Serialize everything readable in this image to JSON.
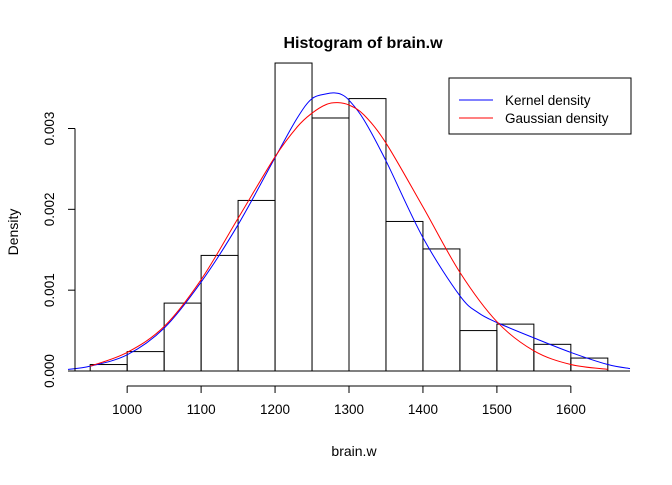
{
  "chart_data": {
    "type": "bar",
    "title": "Histogram of brain.w",
    "xlabel": "brain.w",
    "ylabel": "Density",
    "xlim": [
      920,
      1680
    ],
    "ylim": [
      0,
      0.0036
    ],
    "grid": false,
    "legend_position": "top-right",
    "x_ticks": [
      1000,
      1100,
      1200,
      1300,
      1400,
      1500,
      1600
    ],
    "y_ticks": [
      0.0,
      0.001,
      0.002,
      0.003
    ],
    "y_tick_labels": [
      "0.000",
      "0.001",
      "0.002",
      "0.003"
    ],
    "bins": [
      {
        "start": 950,
        "end": 1000,
        "density": 8e-05
      },
      {
        "start": 1000,
        "end": 1050,
        "density": 0.00024
      },
      {
        "start": 1050,
        "end": 1100,
        "density": 0.00084
      },
      {
        "start": 1100,
        "end": 1150,
        "density": 0.00143
      },
      {
        "start": 1150,
        "end": 1200,
        "density": 0.00211
      },
      {
        "start": 1200,
        "end": 1250,
        "density": 0.00381
      },
      {
        "start": 1250,
        "end": 1300,
        "density": 0.00313
      },
      {
        "start": 1300,
        "end": 1350,
        "density": 0.00337
      },
      {
        "start": 1350,
        "end": 1400,
        "density": 0.00185
      },
      {
        "start": 1400,
        "end": 1450,
        "density": 0.00151
      },
      {
        "start": 1450,
        "end": 1500,
        "density": 0.0005
      },
      {
        "start": 1500,
        "end": 1550,
        "density": 0.00058
      },
      {
        "start": 1550,
        "end": 1600,
        "density": 0.00033
      },
      {
        "start": 1600,
        "end": 1650,
        "density": 0.00016
      }
    ],
    "series": [
      {
        "name": "Kernel density",
        "color": "#0000ff",
        "x": [
          920,
          950,
          1000,
          1050,
          1100,
          1150,
          1200,
          1230,
          1250,
          1270,
          1280,
          1290,
          1300,
          1320,
          1350,
          1400,
          1450,
          1475,
          1500,
          1550,
          1600,
          1650,
          1680
        ],
        "y": [
          2e-05,
          6e-05,
          0.0002,
          0.00053,
          0.0011,
          0.00181,
          0.00264,
          0.00313,
          0.00337,
          0.00343,
          0.00344,
          0.00342,
          0.00335,
          0.00311,
          0.0026,
          0.00165,
          0.00093,
          0.00072,
          0.0006,
          0.00041,
          0.00023,
          8e-05,
          3e-05
        ]
      },
      {
        "name": "Gaussian density",
        "color": "#ff0000",
        "x": [
          950,
          1000,
          1050,
          1100,
          1150,
          1200,
          1230,
          1250,
          1270,
          1285,
          1300,
          1320,
          1350,
          1400,
          1450,
          1500,
          1550,
          1600,
          1650
        ],
        "y": [
          6e-05,
          0.00023,
          0.00055,
          0.00113,
          0.00189,
          0.00265,
          0.00302,
          0.00319,
          0.0033,
          0.00332,
          0.00329,
          0.00317,
          0.00282,
          0.00203,
          0.00122,
          0.00061,
          0.00025,
          8e-05,
          2e-05
        ]
      }
    ]
  }
}
